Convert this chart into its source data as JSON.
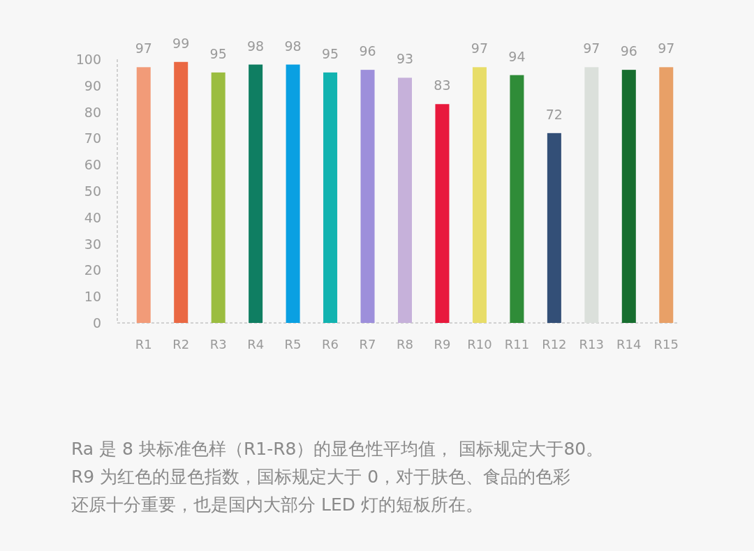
{
  "chart_data": {
    "type": "bar",
    "categories": [
      "R1",
      "R2",
      "R3",
      "R4",
      "R5",
      "R6",
      "R7",
      "R8",
      "R9",
      "R10",
      "R11",
      "R12",
      "R13",
      "R14",
      "R15"
    ],
    "values": [
      97,
      99,
      95,
      98,
      98,
      95,
      96,
      93,
      83,
      97,
      94,
      72,
      97,
      96,
      97
    ],
    "colors": [
      "#f29b78",
      "#ea6843",
      "#9bbd40",
      "#0f7e62",
      "#0aa0e2",
      "#12b3b0",
      "#9d8fdb",
      "#c6b1da",
      "#e8193d",
      "#e8dd68",
      "#2f8c38",
      "#334f77",
      "#dbe0db",
      "#176e2f",
      "#e8a067"
    ],
    "ylim": [
      0,
      100
    ],
    "yticks": [
      0,
      10,
      20,
      30,
      40,
      50,
      60,
      70,
      80,
      90,
      100
    ],
    "data_labels": true,
    "annotations": [
      "Ra 是 8 块标准色样（R1-R8）的显色性平均值， 国标规定大于80。",
      "R9 为红色的显色指数，国标规定大于 0，对于肤色、食品的色彩",
      "还原十分重要，也是国内大部分 LED 灯的短板所在。"
    ]
  }
}
